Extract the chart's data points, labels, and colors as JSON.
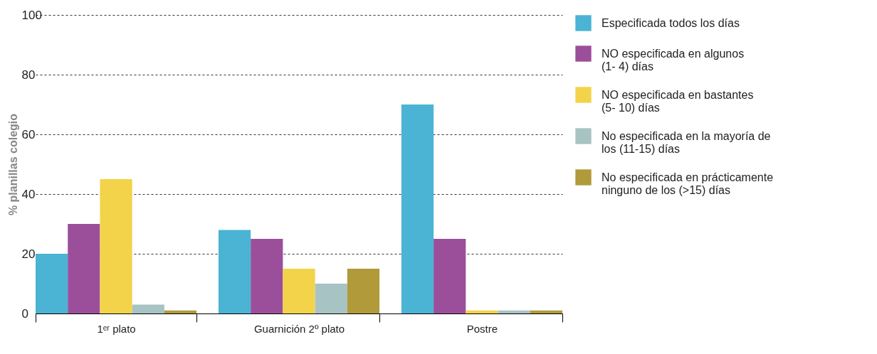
{
  "chart_data": {
    "type": "bar",
    "ylabel": "% planillas colegio",
    "categories": [
      "1ᵉʳ plato",
      "Guarnición 2º plato",
      "Postre"
    ],
    "series": [
      {
        "name": "Especificada todos los días",
        "color": "#4bb3d3",
        "values": [
          20,
          28,
          70
        ]
      },
      {
        "name": "NO especificada en algunos (1- 4) días",
        "color": "#9b4f9b",
        "values": [
          30,
          25,
          25
        ]
      },
      {
        "name": "NO especificada en bastantes (5- 10) días",
        "color": "#f3d34a",
        "values": [
          45,
          15,
          1
        ]
      },
      {
        "name": "No especificada en la mayoría de los (11-15) días",
        "color": "#a8c3c3",
        "values": [
          3,
          10,
          1
        ]
      },
      {
        "name": "No especificada en prácticamente ninguno de los (>15) días",
        "color": "#b09a3a",
        "values": [
          1,
          15,
          1
        ]
      }
    ],
    "ylim": [
      0,
      100
    ],
    "yticks": [
      0,
      20,
      40,
      60,
      80,
      100
    ],
    "grid": "y",
    "legend": "right"
  }
}
